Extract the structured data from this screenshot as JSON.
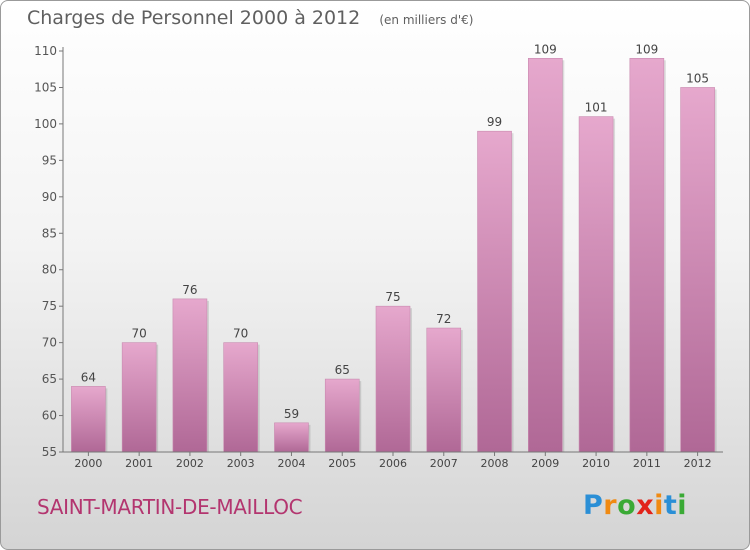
{
  "chart_data": {
    "type": "bar",
    "title": "Charges de Personnel 2000 à 2012",
    "subtitle": "(en milliers d'€)",
    "categories": [
      "2000",
      "2001",
      "2002",
      "2003",
      "2004",
      "2005",
      "2006",
      "2007",
      "2008",
      "2009",
      "2010",
      "2011",
      "2012"
    ],
    "values": [
      64,
      70,
      76,
      70,
      59,
      65,
      75,
      72,
      99,
      109,
      101,
      109,
      105
    ],
    "ylim": [
      55,
      110
    ],
    "yticks": [
      55,
      60,
      65,
      70,
      75,
      80,
      85,
      90,
      95,
      100,
      105,
      110
    ],
    "xlabel": "",
    "ylabel": "",
    "grid": false,
    "bar_color_top": "#e6a8cd",
    "bar_color_bottom": "#b06896"
  },
  "footer": {
    "commune": "SAINT-MARTIN-DE-MAILLOC",
    "logo_text": "Proxiti",
    "logo_colors": [
      "#2b8fd6",
      "#f08a12",
      "#3aaa35",
      "#e2231a",
      "#f08a12",
      "#2b8fd6",
      "#3aaa35"
    ]
  }
}
